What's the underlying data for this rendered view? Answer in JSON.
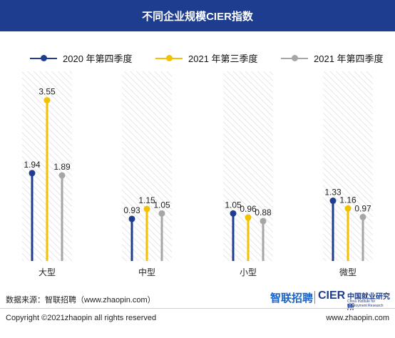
{
  "header": {
    "title": "不同企业规模CIER指数"
  },
  "chart_data": {
    "type": "lollipop",
    "title": "不同企业规模CIER指数",
    "categories": [
      "大型",
      "中型",
      "小型",
      "微型"
    ],
    "series": [
      {
        "name": "2020 年第四季度",
        "color": "#1f3d8f",
        "values": [
          1.94,
          0.93,
          1.05,
          1.33
        ]
      },
      {
        "name": "2021 年第三季度",
        "color": "#f2c200",
        "values": [
          3.55,
          1.15,
          0.96,
          1.16
        ]
      },
      {
        "name": "2021 年第四季度",
        "color": "#a6a6a6",
        "values": [
          1.89,
          1.05,
          0.88,
          0.97
        ]
      }
    ],
    "value_labels": [
      [
        "1.94",
        "3.55",
        "1.89"
      ],
      [
        "0.93",
        "1.15",
        "1.05"
      ],
      [
        "1.05",
        "0.96",
        "0.88"
      ],
      [
        "1.33",
        "1.16",
        "0.97"
      ]
    ],
    "ylim": [
      0,
      4
    ],
    "grid": false,
    "legend": "top"
  },
  "footer": {
    "source": "数据来源：智联招聘（www.zhaopin.com）",
    "brand_zhaopin": "智联招聘",
    "brand_cier": "CIER",
    "brand_cier_cn": "中国就业研究所",
    "brand_cier_en": "China Institute for Employment Research",
    "copyright": "Copyright ©2021zhaopin all rights reserved",
    "website": "www.zhaopin.com"
  }
}
